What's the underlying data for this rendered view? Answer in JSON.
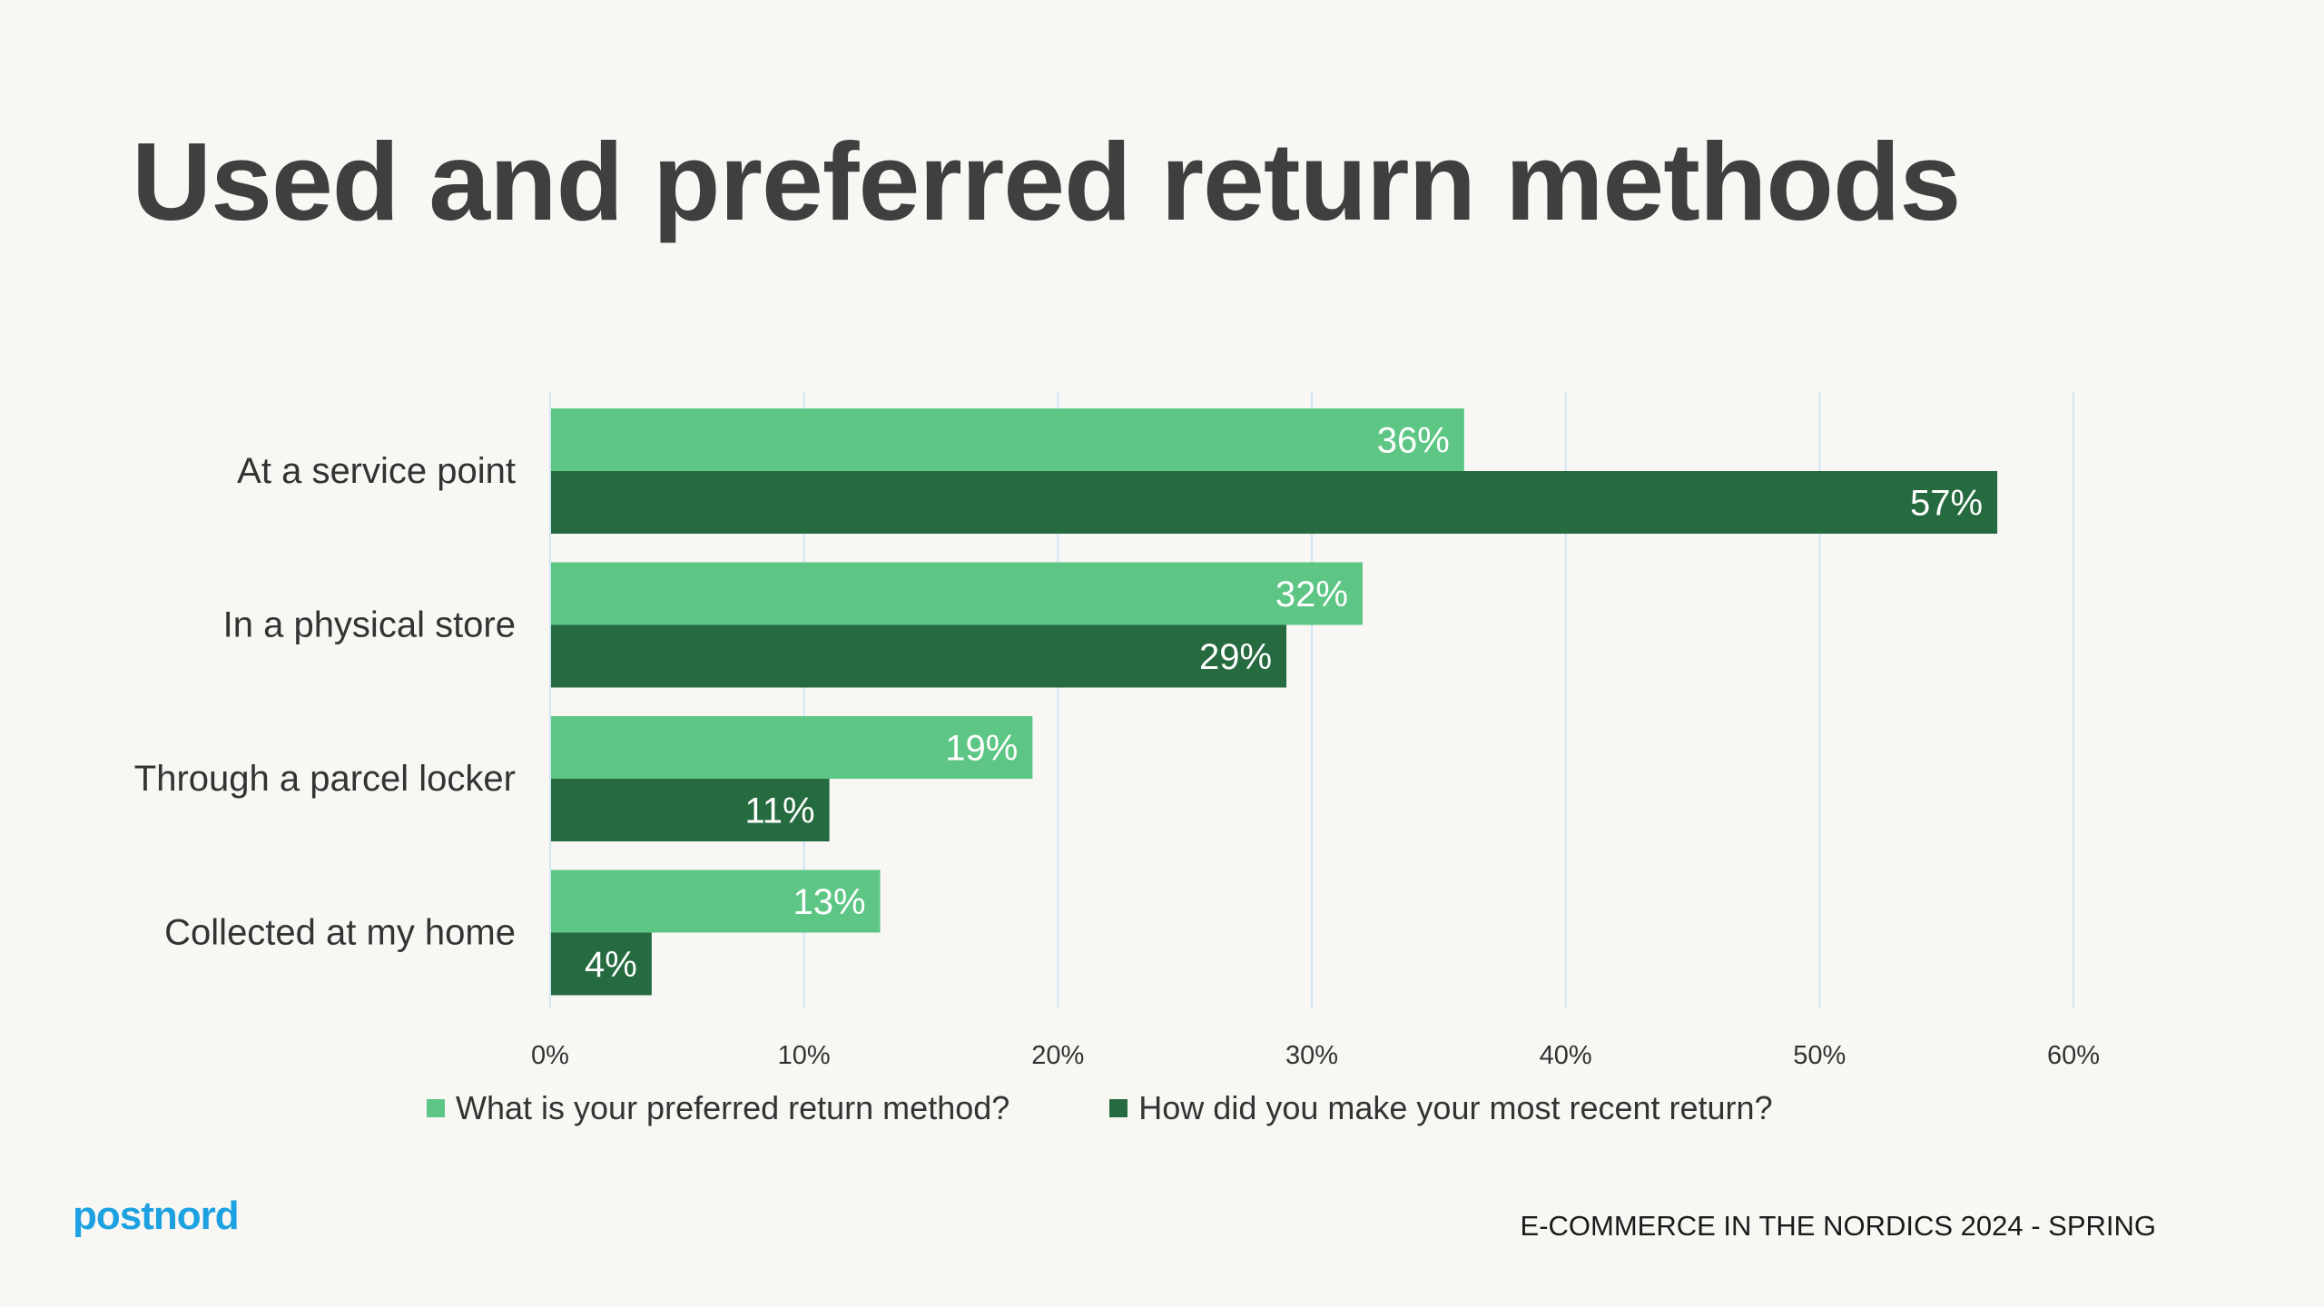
{
  "title": "Used and preferred return methods",
  "footer": "E-COMMERCE IN THE NORDICS 2024 - SPRING",
  "logo_text": "postnord",
  "colors": {
    "preferred": "#5ec685",
    "recent": "#266b40",
    "grid": "#cfe6f5",
    "logo": "#1da1e0"
  },
  "chart_data": {
    "type": "bar",
    "orientation": "horizontal",
    "categories": [
      "At a service point",
      "In a physical store",
      "Through a parcel locker",
      "Collected at my home"
    ],
    "series": [
      {
        "name": "What is your preferred return method?",
        "values": [
          36,
          32,
          19,
          13
        ],
        "labels": [
          "36%",
          "32%",
          "19%",
          "13%"
        ]
      },
      {
        "name": "How did you make your most recent return?",
        "values": [
          57,
          29,
          11,
          4
        ],
        "labels": [
          "57%",
          "29%",
          "11%",
          "4%"
        ]
      }
    ],
    "xlim": [
      0,
      60
    ],
    "xticks": [
      0,
      10,
      20,
      30,
      40,
      50,
      60
    ],
    "xtick_labels": [
      "0%",
      "10%",
      "20%",
      "30%",
      "40%",
      "50%",
      "60%"
    ],
    "grid": true,
    "legend_position": "bottom"
  }
}
